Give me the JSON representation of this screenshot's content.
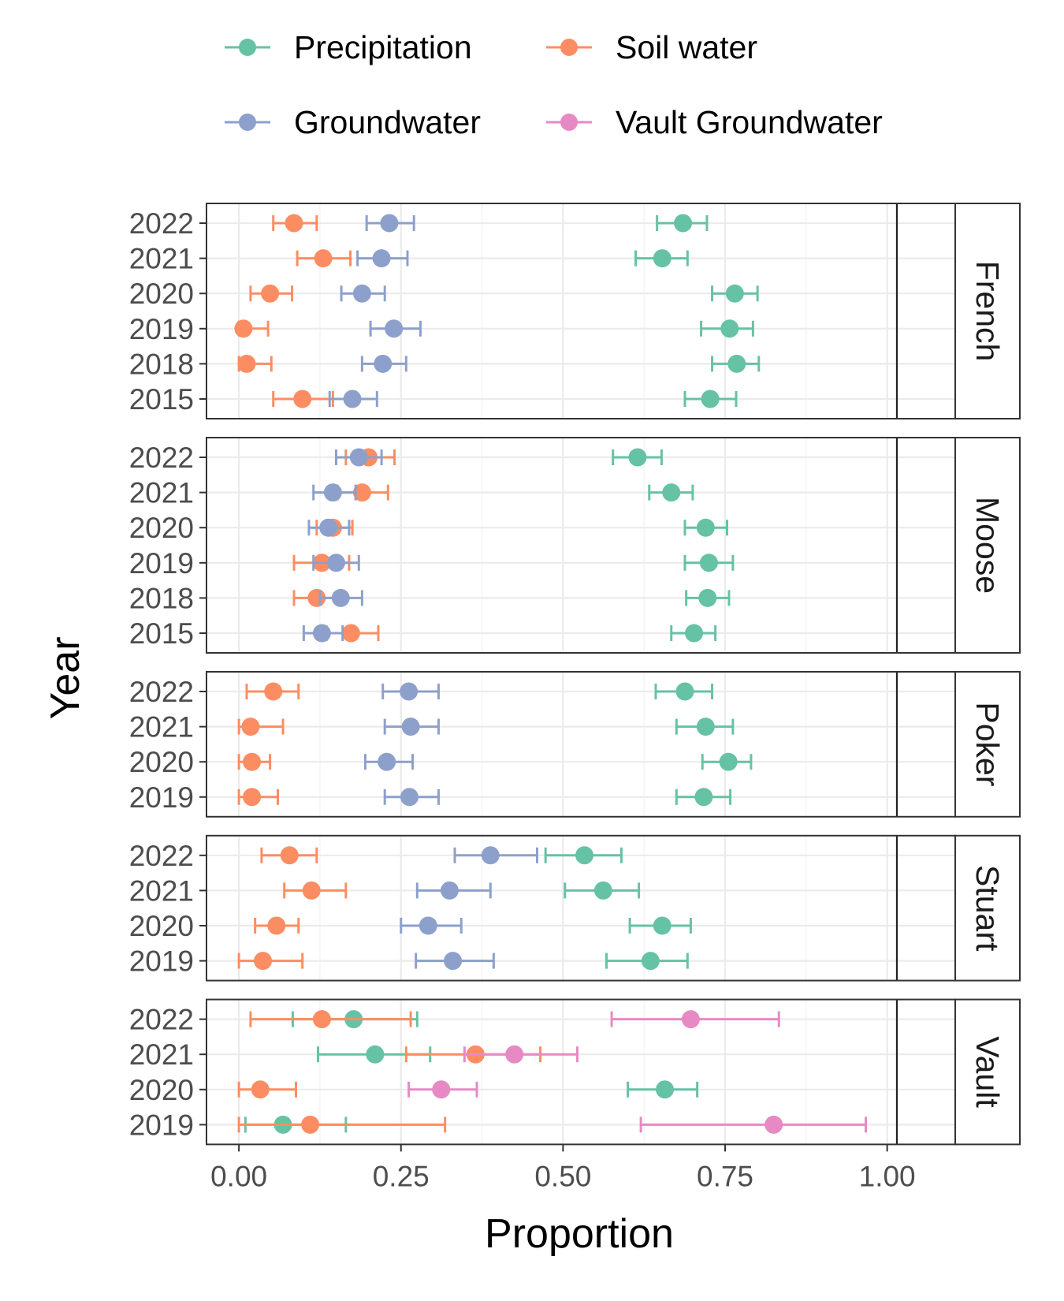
{
  "chart_data": {
    "type": "scatter",
    "style": "faceted point-range (dot with horizontal error bars)",
    "xlabel": "Proportion",
    "ylabel": "Year",
    "xlim": [
      -0.05,
      1.105
    ],
    "x_ticks": [
      "0.00",
      "0.25",
      "0.50",
      "0.75",
      "1.00"
    ],
    "x_tick_values": [
      0,
      0.25,
      0.5,
      0.75,
      1.0
    ],
    "reference_line_x": 1.015,
    "grid": true,
    "legend_position": "top",
    "series": [
      {
        "key": "precipitation",
        "name": "Precipitation",
        "color": "#66C2A5"
      },
      {
        "key": "soil",
        "name": "Soil water",
        "color": "#FC8D62"
      },
      {
        "key": "groundwater",
        "name": "Groundwater",
        "color": "#8DA0CB"
      },
      {
        "key": "vault",
        "name": "Vault Groundwater",
        "color": "#E78AC3"
      }
    ],
    "facets": [
      {
        "name": "French",
        "years": [
          "2022",
          "2021",
          "2020",
          "2019",
          "2018",
          "2015"
        ],
        "points": [
          {
            "series": "precipitation",
            "year": "2022",
            "x": 0.685,
            "lo": 0.645,
            "hi": 0.722
          },
          {
            "series": "soil",
            "year": "2022",
            "x": 0.085,
            "lo": 0.053,
            "hi": 0.12
          },
          {
            "series": "groundwater",
            "year": "2022",
            "x": 0.232,
            "lo": 0.197,
            "hi": 0.27
          },
          {
            "series": "precipitation",
            "year": "2021",
            "x": 0.653,
            "lo": 0.612,
            "hi": 0.692
          },
          {
            "series": "soil",
            "year": "2021",
            "x": 0.13,
            "lo": 0.09,
            "hi": 0.172
          },
          {
            "series": "groundwater",
            "year": "2021",
            "x": 0.22,
            "lo": 0.183,
            "hi": 0.26
          },
          {
            "series": "precipitation",
            "year": "2020",
            "x": 0.765,
            "lo": 0.73,
            "hi": 0.8
          },
          {
            "series": "soil",
            "year": "2020",
            "x": 0.048,
            "lo": 0.018,
            "hi": 0.082
          },
          {
            "series": "groundwater",
            "year": "2020",
            "x": 0.19,
            "lo": 0.158,
            "hi": 0.225
          },
          {
            "series": "precipitation",
            "year": "2019",
            "x": 0.757,
            "lo": 0.713,
            "hi": 0.793
          },
          {
            "series": "soil",
            "year": "2019",
            "x": 0.007,
            "lo": 0.0,
            "hi": 0.045
          },
          {
            "series": "groundwater",
            "year": "2019",
            "x": 0.239,
            "lo": 0.203,
            "hi": 0.28
          },
          {
            "series": "precipitation",
            "year": "2018",
            "x": 0.768,
            "lo": 0.73,
            "hi": 0.802
          },
          {
            "series": "soil",
            "year": "2018",
            "x": 0.012,
            "lo": 0.0,
            "hi": 0.05
          },
          {
            "series": "groundwater",
            "year": "2018",
            "x": 0.222,
            "lo": 0.19,
            "hi": 0.258
          },
          {
            "series": "precipitation",
            "year": "2015",
            "x": 0.727,
            "lo": 0.688,
            "hi": 0.767
          },
          {
            "series": "soil",
            "year": "2015",
            "x": 0.098,
            "lo": 0.053,
            "hi": 0.145
          },
          {
            "series": "groundwater",
            "year": "2015",
            "x": 0.175,
            "lo": 0.14,
            "hi": 0.213
          }
        ]
      },
      {
        "name": "Moose",
        "years": [
          "2022",
          "2021",
          "2020",
          "2019",
          "2018",
          "2015"
        ],
        "points": [
          {
            "series": "precipitation",
            "year": "2022",
            "x": 0.615,
            "lo": 0.577,
            "hi": 0.652
          },
          {
            "series": "soil",
            "year": "2022",
            "x": 0.2,
            "lo": 0.165,
            "hi": 0.24
          },
          {
            "series": "groundwater",
            "year": "2022",
            "x": 0.185,
            "lo": 0.15,
            "hi": 0.22
          },
          {
            "series": "precipitation",
            "year": "2021",
            "x": 0.667,
            "lo": 0.633,
            "hi": 0.7
          },
          {
            "series": "soil",
            "year": "2021",
            "x": 0.19,
            "lo": 0.152,
            "hi": 0.23
          },
          {
            "series": "groundwater",
            "year": "2021",
            "x": 0.145,
            "lo": 0.115,
            "hi": 0.18
          },
          {
            "series": "precipitation",
            "year": "2020",
            "x": 0.72,
            "lo": 0.688,
            "hi": 0.753
          },
          {
            "series": "soil",
            "year": "2020",
            "x": 0.145,
            "lo": 0.12,
            "hi": 0.175
          },
          {
            "series": "groundwater",
            "year": "2020",
            "x": 0.138,
            "lo": 0.108,
            "hi": 0.17
          },
          {
            "series": "precipitation",
            "year": "2019",
            "x": 0.725,
            "lo": 0.688,
            "hi": 0.762
          },
          {
            "series": "soil",
            "year": "2019",
            "x": 0.128,
            "lo": 0.085,
            "hi": 0.17
          },
          {
            "series": "groundwater",
            "year": "2019",
            "x": 0.15,
            "lo": 0.115,
            "hi": 0.185
          },
          {
            "series": "precipitation",
            "year": "2018",
            "x": 0.723,
            "lo": 0.69,
            "hi": 0.756
          },
          {
            "series": "soil",
            "year": "2018",
            "x": 0.12,
            "lo": 0.085,
            "hi": 0.155
          },
          {
            "series": "groundwater",
            "year": "2018",
            "x": 0.157,
            "lo": 0.125,
            "hi": 0.19
          },
          {
            "series": "precipitation",
            "year": "2015",
            "x": 0.702,
            "lo": 0.667,
            "hi": 0.735
          },
          {
            "series": "soil",
            "year": "2015",
            "x": 0.173,
            "lo": 0.135,
            "hi": 0.215
          },
          {
            "series": "groundwater",
            "year": "2015",
            "x": 0.128,
            "lo": 0.1,
            "hi": 0.16
          }
        ]
      },
      {
        "name": "Poker",
        "years": [
          "2022",
          "2021",
          "2020",
          "2019"
        ],
        "points": [
          {
            "series": "precipitation",
            "year": "2022",
            "x": 0.688,
            "lo": 0.643,
            "hi": 0.73
          },
          {
            "series": "soil",
            "year": "2022",
            "x": 0.053,
            "lo": 0.012,
            "hi": 0.092
          },
          {
            "series": "groundwater",
            "year": "2022",
            "x": 0.262,
            "lo": 0.222,
            "hi": 0.308
          },
          {
            "series": "precipitation",
            "year": "2021",
            "x": 0.72,
            "lo": 0.675,
            "hi": 0.762
          },
          {
            "series": "soil",
            "year": "2021",
            "x": 0.018,
            "lo": 0.0,
            "hi": 0.068
          },
          {
            "series": "groundwater",
            "year": "2021",
            "x": 0.265,
            "lo": 0.225,
            "hi": 0.308
          },
          {
            "series": "precipitation",
            "year": "2020",
            "x": 0.755,
            "lo": 0.715,
            "hi": 0.79
          },
          {
            "series": "soil",
            "year": "2020",
            "x": 0.02,
            "lo": 0.0,
            "hi": 0.048
          },
          {
            "series": "groundwater",
            "year": "2020",
            "x": 0.228,
            "lo": 0.195,
            "hi": 0.268
          },
          {
            "series": "precipitation",
            "year": "2019",
            "x": 0.717,
            "lo": 0.675,
            "hi": 0.758
          },
          {
            "series": "soil",
            "year": "2019",
            "x": 0.02,
            "lo": 0.0,
            "hi": 0.06
          },
          {
            "series": "groundwater",
            "year": "2019",
            "x": 0.263,
            "lo": 0.225,
            "hi": 0.308
          }
        ]
      },
      {
        "name": "Stuart",
        "years": [
          "2022",
          "2021",
          "2020",
          "2019"
        ],
        "points": [
          {
            "series": "precipitation",
            "year": "2022",
            "x": 0.533,
            "lo": 0.473,
            "hi": 0.59
          },
          {
            "series": "soil",
            "year": "2022",
            "x": 0.078,
            "lo": 0.035,
            "hi": 0.12
          },
          {
            "series": "groundwater",
            "year": "2022",
            "x": 0.388,
            "lo": 0.333,
            "hi": 0.46
          },
          {
            "series": "precipitation",
            "year": "2021",
            "x": 0.562,
            "lo": 0.503,
            "hi": 0.617
          },
          {
            "series": "soil",
            "year": "2021",
            "x": 0.112,
            "lo": 0.07,
            "hi": 0.165
          },
          {
            "series": "groundwater",
            "year": "2021",
            "x": 0.325,
            "lo": 0.275,
            "hi": 0.388
          },
          {
            "series": "precipitation",
            "year": "2020",
            "x": 0.653,
            "lo": 0.603,
            "hi": 0.697
          },
          {
            "series": "soil",
            "year": "2020",
            "x": 0.058,
            "lo": 0.025,
            "hi": 0.092
          },
          {
            "series": "groundwater",
            "year": "2020",
            "x": 0.292,
            "lo": 0.25,
            "hi": 0.343
          },
          {
            "series": "precipitation",
            "year": "2019",
            "x": 0.635,
            "lo": 0.567,
            "hi": 0.692
          },
          {
            "series": "soil",
            "year": "2019",
            "x": 0.037,
            "lo": 0.0,
            "hi": 0.098
          },
          {
            "series": "groundwater",
            "year": "2019",
            "x": 0.33,
            "lo": 0.273,
            "hi": 0.393
          }
        ]
      },
      {
        "name": "Vault",
        "years": [
          "2022",
          "2021",
          "2020",
          "2019"
        ],
        "points": [
          {
            "series": "precipitation",
            "year": "2022",
            "x": 0.177,
            "lo": 0.083,
            "hi": 0.275
          },
          {
            "series": "soil",
            "year": "2022",
            "x": 0.128,
            "lo": 0.018,
            "hi": 0.265
          },
          {
            "series": "vault",
            "year": "2022",
            "x": 0.697,
            "lo": 0.575,
            "hi": 0.833
          },
          {
            "series": "precipitation",
            "year": "2021",
            "x": 0.21,
            "lo": 0.122,
            "hi": 0.295
          },
          {
            "series": "soil",
            "year": "2021",
            "x": 0.365,
            "lo": 0.258,
            "hi": 0.465
          },
          {
            "series": "vault",
            "year": "2021",
            "x": 0.425,
            "lo": 0.348,
            "hi": 0.522
          },
          {
            "series": "precipitation",
            "year": "2020",
            "x": 0.657,
            "lo": 0.6,
            "hi": 0.707
          },
          {
            "series": "soil",
            "year": "2020",
            "x": 0.033,
            "lo": 0.0,
            "hi": 0.088
          },
          {
            "series": "vault",
            "year": "2020",
            "x": 0.312,
            "lo": 0.262,
            "hi": 0.367
          },
          {
            "series": "precipitation",
            "year": "2019",
            "x": 0.068,
            "lo": 0.01,
            "hi": 0.165
          },
          {
            "series": "soil",
            "year": "2019",
            "x": 0.11,
            "lo": 0.0,
            "hi": 0.318
          },
          {
            "series": "vault",
            "year": "2019",
            "x": 0.825,
            "lo": 0.62,
            "hi": 0.967
          }
        ]
      }
    ]
  }
}
